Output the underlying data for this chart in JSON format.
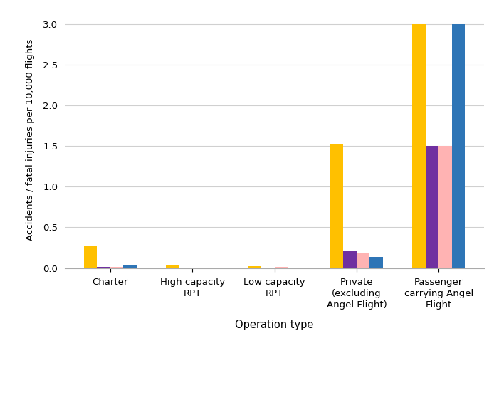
{
  "categories": [
    "Charter",
    "High capacity\nRPT",
    "Low capacity\nRPT",
    "Private\n(excluding\nAngel Flight)",
    "Passenger\ncarrying Angel\nFlight"
  ],
  "series": {
    "Accidents": [
      0.28,
      0.04,
      0.02,
      1.53,
      3.0
    ],
    "Fatal accidents": [
      0.01,
      0.0,
      0.0,
      0.21,
      1.5
    ],
    "Crew fatal injuries": [
      0.01,
      0.0,
      0.01,
      0.19,
      1.5
    ],
    "Passenger fatal injuries": [
      0.04,
      0.0,
      0.0,
      0.14,
      3.0
    ]
  },
  "colors": {
    "Accidents": "#FFC000",
    "Fatal accidents": "#7030A0",
    "Crew fatal injuries": "#FFB3B3",
    "Passenger fatal injuries": "#2E75B6"
  },
  "ylabel": "Accidents / fatal injuries per 10,000 flights",
  "xlabel": "Operation type",
  "ylim": [
    0,
    3.15
  ],
  "yticks": [
    0,
    0.5,
    1,
    1.5,
    2,
    2.5,
    3
  ],
  "background_color": "#FFFFFF",
  "grid_color": "#D0D0D0",
  "bar_width": 0.16
}
